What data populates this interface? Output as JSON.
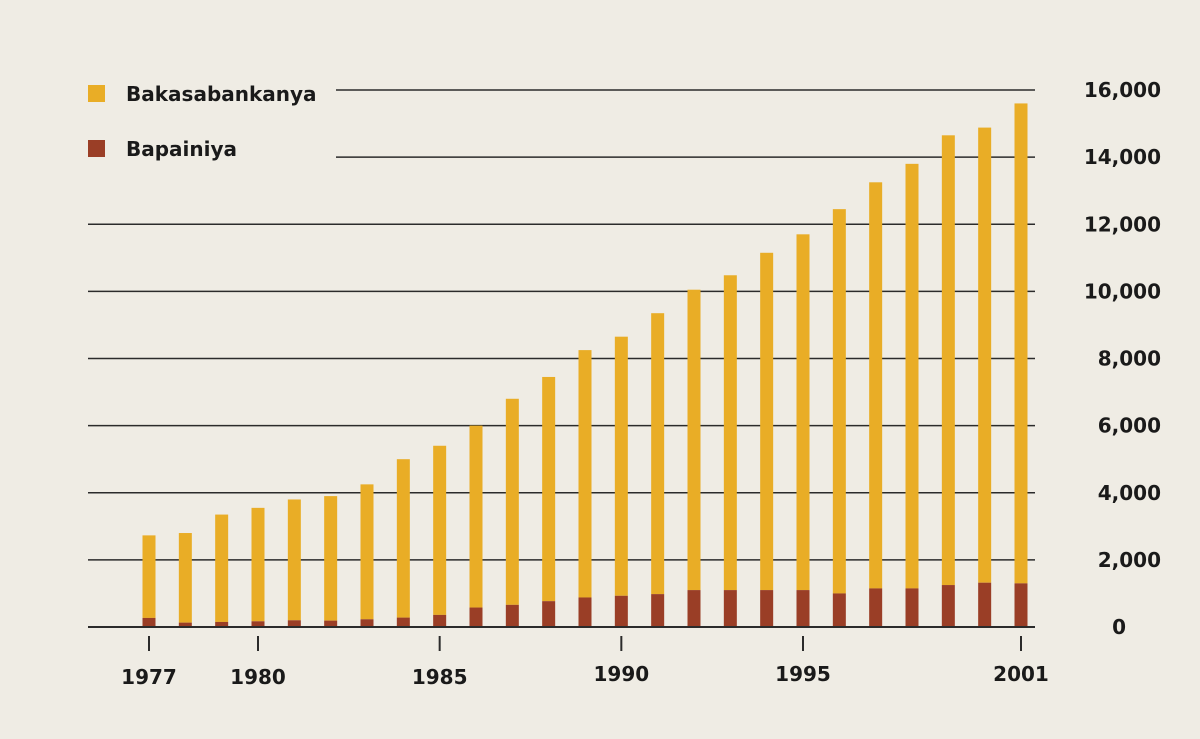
{
  "chart_data": {
    "type": "bar",
    "stacked": true,
    "categories": [
      "1977",
      "1978",
      "1979",
      "1980",
      "1981",
      "1982",
      "1983",
      "1984",
      "1985",
      "1986",
      "1987",
      "1988",
      "1989",
      "1990",
      "1991",
      "1992",
      "1993",
      "1994",
      "1995",
      "1996",
      "1997",
      "1998",
      "1999",
      "2000",
      "2001"
    ],
    "x_tick_labels": [
      "1977",
      "1980",
      "1985",
      "1990",
      "1995",
      "2001"
    ],
    "y_tick_labels": [
      "0",
      "2,000",
      "4,000",
      "6,000",
      "8,000",
      "10,000",
      "12,000",
      "14,000",
      "16,000"
    ],
    "ylim": [
      0,
      16000
    ],
    "y_ticks": [
      0,
      2000,
      4000,
      6000,
      8000,
      10000,
      12000,
      14000,
      16000
    ],
    "grid": true,
    "legend_position": "top-left",
    "series": [
      {
        "name": "Bapainiya",
        "color": "#9a3e26",
        "values": [
          270,
          130,
          150,
          170,
          200,
          190,
          230,
          280,
          360,
          580,
          660,
          770,
          880,
          930,
          980,
          1100,
          1100,
          1100,
          1100,
          1000,
          1150,
          1150,
          1250,
          1320,
          1300
        ]
      },
      {
        "name": "Bakasabankanya",
        "color": "#e9ad26",
        "totals": [
          2730,
          2800,
          3350,
          3550,
          3800,
          3900,
          4250,
          5000,
          5400,
          6000,
          6800,
          7450,
          8250,
          8650,
          9350,
          10050,
          10480,
          11150,
          11700,
          12450,
          13250,
          13800,
          14650,
          14880,
          15600
        ]
      }
    ],
    "title": "",
    "xlabel": "",
    "ylabel": ""
  }
}
